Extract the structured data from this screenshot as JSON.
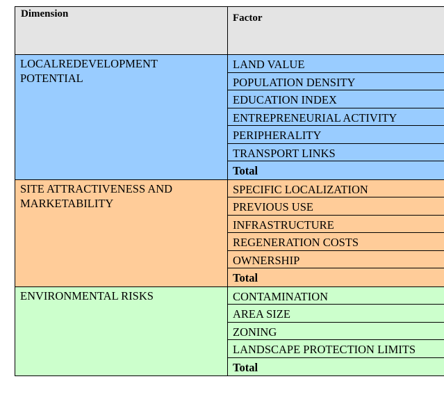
{
  "header": {
    "dimension": "Dimension",
    "factor": "Factor"
  },
  "groups": [
    {
      "dimension_line1": "LOCALREDEVELOPMENT",
      "dimension_line2": "POTENTIAL",
      "color": "#99ccff",
      "factors": [
        "LAND VALUE",
        "POPULATION DENSITY",
        "EDUCATION INDEX",
        "ENTREPRENEURIAL ACTIVITY",
        "PERIPHERALITY",
        "TRANSPORT LINKS"
      ],
      "total": "Total"
    },
    {
      "dimension_line1": "SITE ATTRACTIVENESS AND",
      "dimension_line2": "MARKETABILITY",
      "color": "#ffcc99",
      "factors": [
        "SPECIFIC LOCALIZATION",
        "PREVIOUS USE",
        "INFRASTRUCTURE",
        "REGENERATION COSTS",
        "OWNERSHIP"
      ],
      "total": "Total"
    },
    {
      "dimension_line1": "ENVIRONMENTAL RISKS",
      "dimension_line2": "",
      "color": "#ccffcc",
      "factors": [
        "CONTAMINATION",
        "AREA SIZE",
        "ZONING",
        "LANDSCAPE PROTECTION LIMITS"
      ],
      "total": "Total"
    }
  ]
}
